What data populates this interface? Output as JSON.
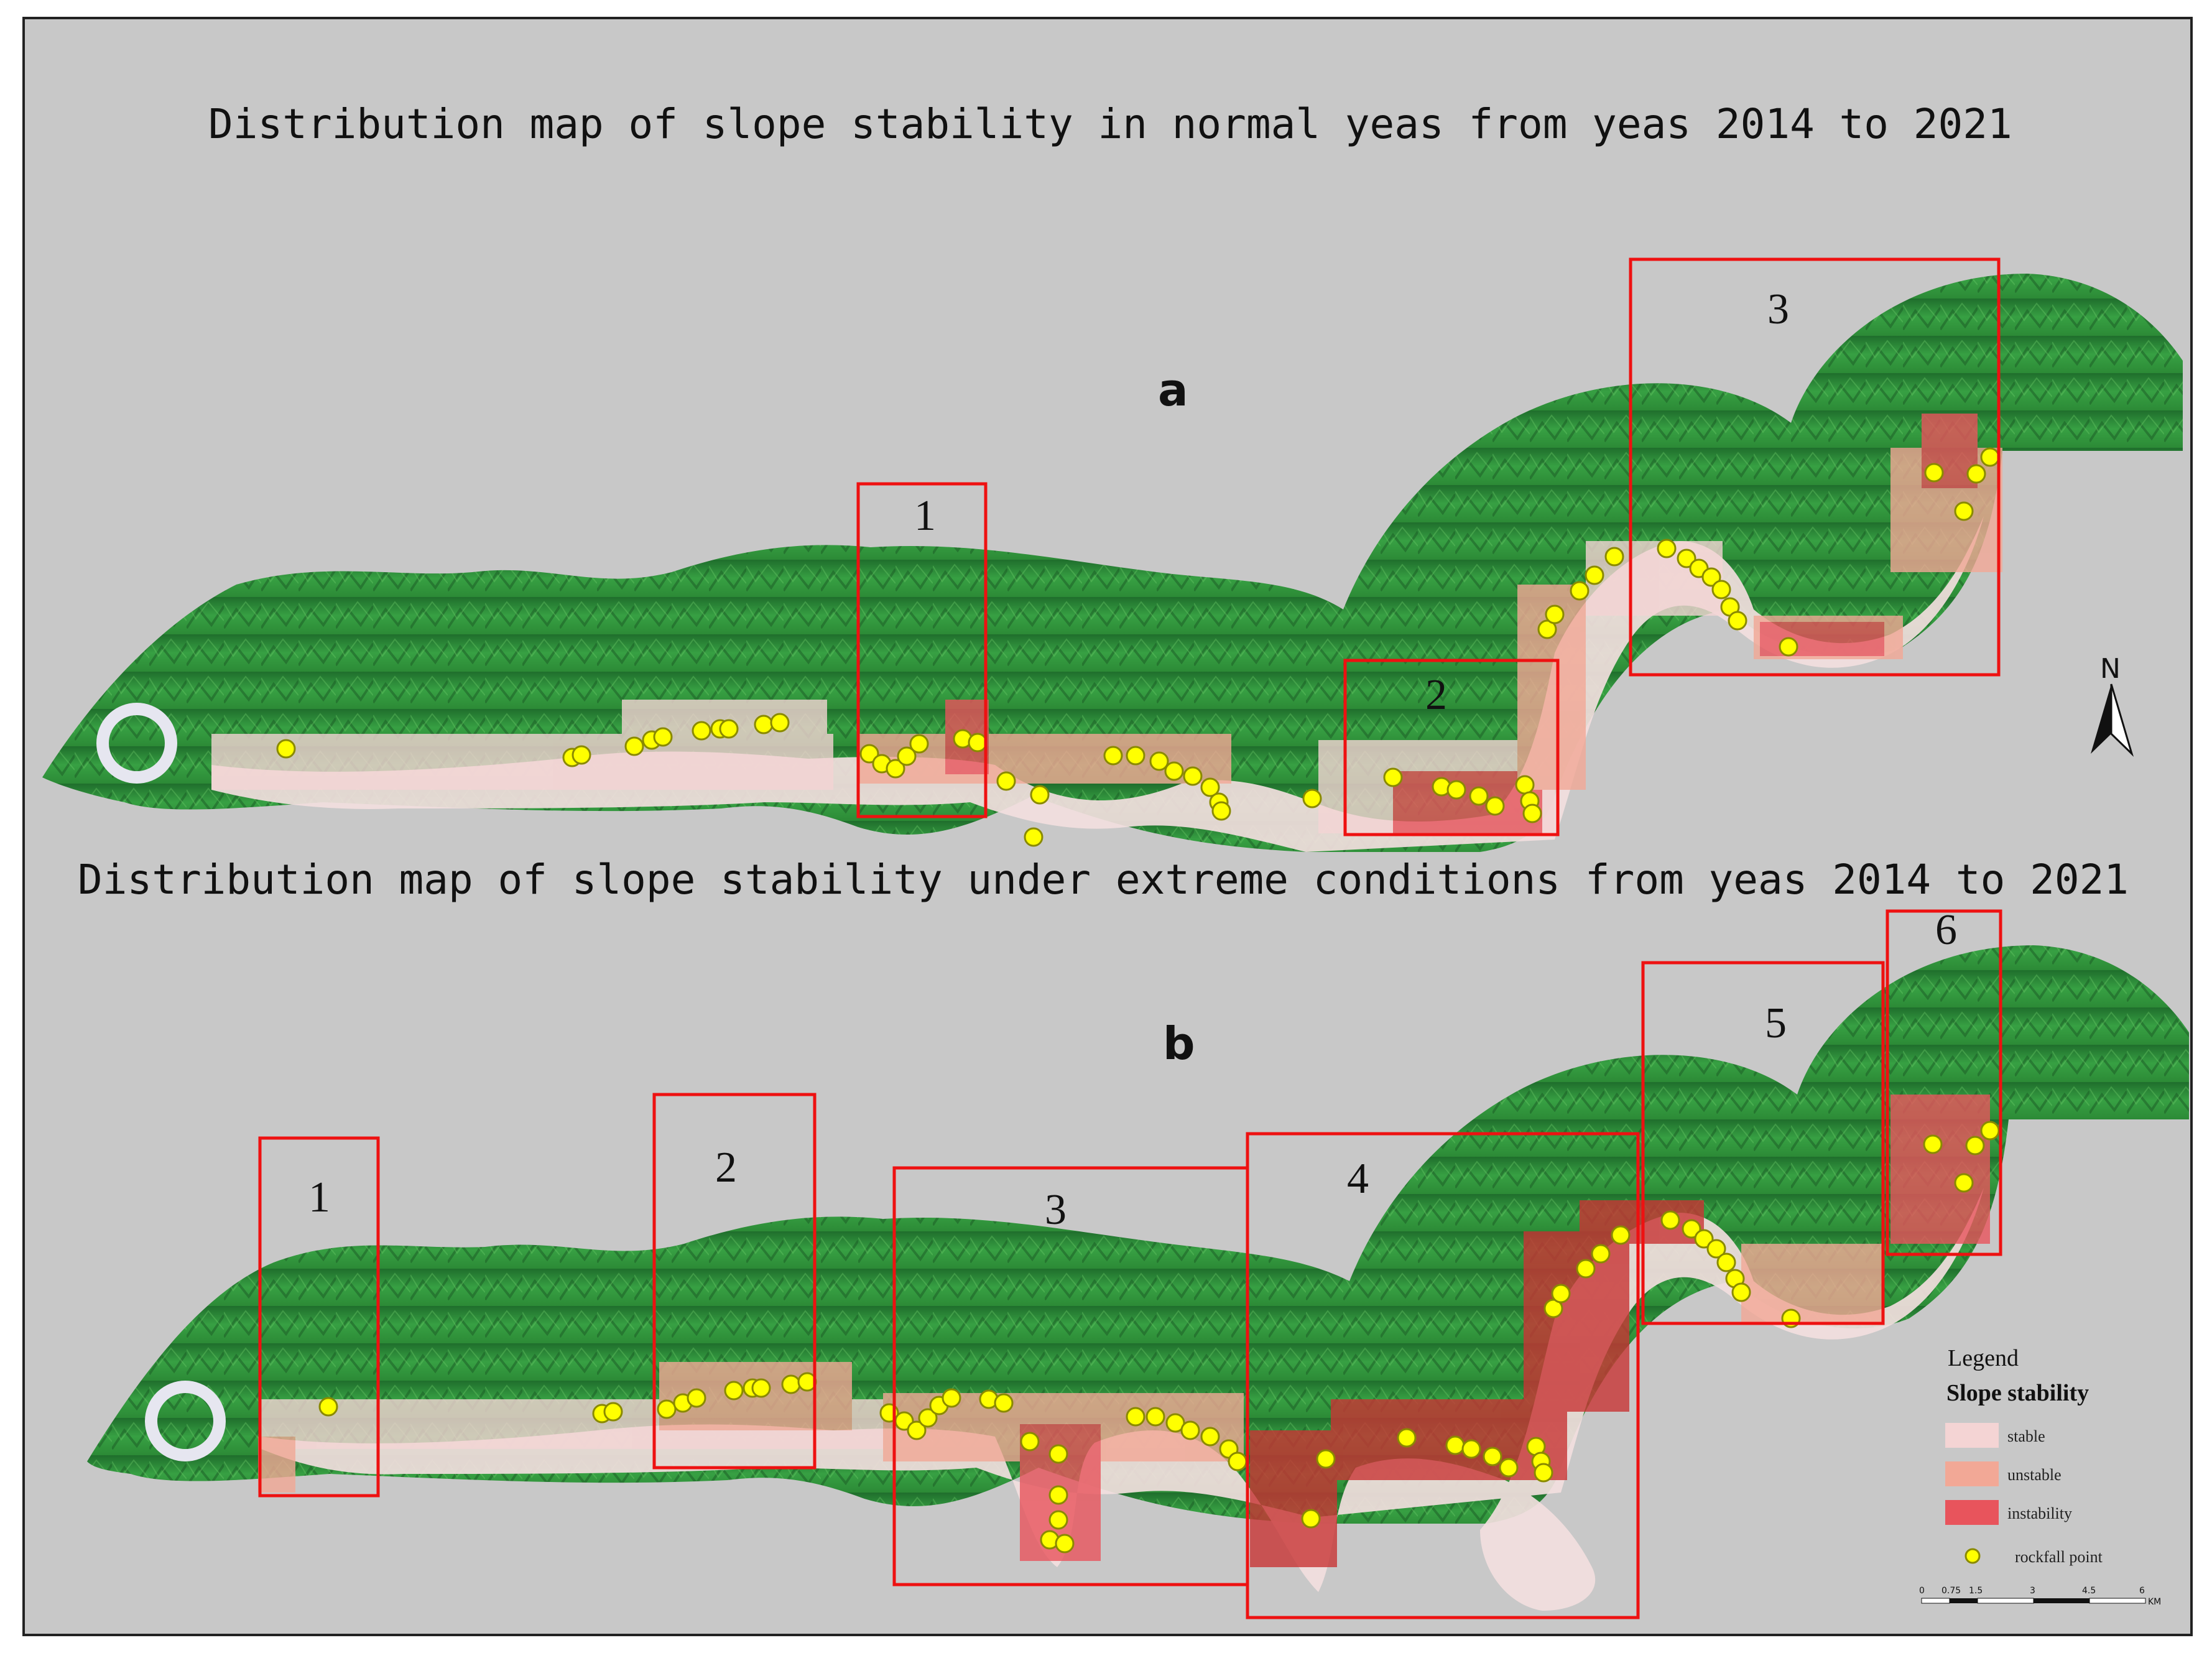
{
  "panels": [
    {
      "letter": "a",
      "title": "Distribution map of slope stability in normal yeas from  yeas 2014  to 2021",
      "boxes": [
        "1",
        "2",
        "3"
      ]
    },
    {
      "letter": "b",
      "title": "Distribution map of slope stability under extreme conditions from yeas 2014 to 2021",
      "boxes": [
        "1",
        "2",
        "3",
        "4",
        "5",
        "6"
      ]
    }
  ],
  "north_label": "N",
  "legend": {
    "title": "Legend",
    "subtitle": "Slope stability",
    "items": [
      {
        "label": "stable",
        "color": "#f4d4d4"
      },
      {
        "label": "unstable",
        "color": "#f2a896"
      },
      {
        "label": "instability",
        "color": "#e8545c"
      }
    ],
    "point_label": "rockfall point",
    "point_color": "#ffff00"
  },
  "scale": {
    "ticks": [
      "0",
      "0.75",
      "1.5",
      "3",
      "4.5",
      "6"
    ],
    "unit": "KM"
  },
  "colors": {
    "background": "#c8c8c8",
    "vegetation": "#2f8f3a",
    "river": "#f2dede",
    "frame_box": "#ee1111"
  }
}
